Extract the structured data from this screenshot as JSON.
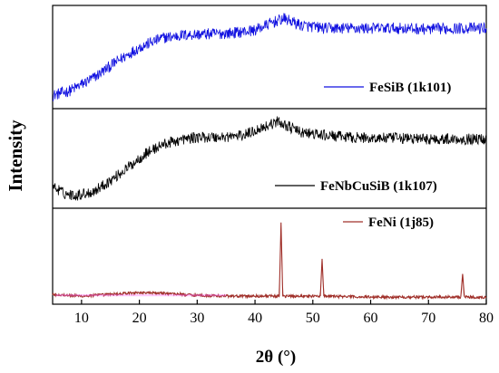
{
  "chart_data": {
    "type": "line",
    "xlabel": "2θ (°)",
    "ylabel": "Intensity",
    "xlim": [
      5,
      80
    ],
    "xticks": [
      10,
      20,
      30,
      40,
      50,
      60,
      70,
      80
    ],
    "grid": false,
    "legend_placement": "right",
    "colors": {
      "FeSiB (1k101)": "#1010e0",
      "FeNbCuSiB (1k107)": "#000000",
      "FeNi (1j85)": "#a0302a",
      "fenimarker": "#ff66ff"
    },
    "series": [
      {
        "name": "FeSiB (1k101)",
        "panel": "top",
        "noise": 0.06,
        "x": [
          5,
          8,
          12,
          16,
          20,
          24,
          28,
          32,
          36,
          40,
          43,
          45,
          48,
          52,
          56,
          60,
          65,
          70,
          75,
          80
        ],
        "y": [
          0.1,
          0.15,
          0.28,
          0.45,
          0.6,
          0.7,
          0.73,
          0.74,
          0.75,
          0.78,
          0.86,
          0.9,
          0.83,
          0.8,
          0.8,
          0.8,
          0.8,
          0.79,
          0.8,
          0.8
        ]
      },
      {
        "name": "FeNbCuSiB (1k107)",
        "panel": "middle",
        "noise": 0.06,
        "x": [
          5,
          7,
          9,
          12,
          15,
          18,
          21,
          24,
          27,
          30,
          34,
          38,
          41,
          44,
          46,
          48,
          52,
          56,
          60,
          65,
          70,
          75,
          80
        ],
        "y": [
          0.2,
          0.12,
          0.1,
          0.14,
          0.26,
          0.4,
          0.55,
          0.65,
          0.7,
          0.73,
          0.73,
          0.75,
          0.83,
          0.9,
          0.84,
          0.78,
          0.75,
          0.73,
          0.72,
          0.72,
          0.71,
          0.71,
          0.71
        ]
      },
      {
        "name": "FeNi (1j85)",
        "panel": "bottom",
        "noise": 0.015,
        "x": [
          5,
          10,
          15,
          20,
          25,
          30,
          35,
          40,
          44.2,
          44.5,
          44.8,
          48,
          51.3,
          51.6,
          51.9,
          60,
          70,
          75.6,
          75.9,
          76.2,
          80
        ],
        "y": [
          0.07,
          0.05,
          0.07,
          0.09,
          0.08,
          0.06,
          0.05,
          0.05,
          0.05,
          0.88,
          0.05,
          0.05,
          0.05,
          0.47,
          0.05,
          0.04,
          0.04,
          0.04,
          0.3,
          0.04,
          0.04
        ]
      }
    ]
  }
}
